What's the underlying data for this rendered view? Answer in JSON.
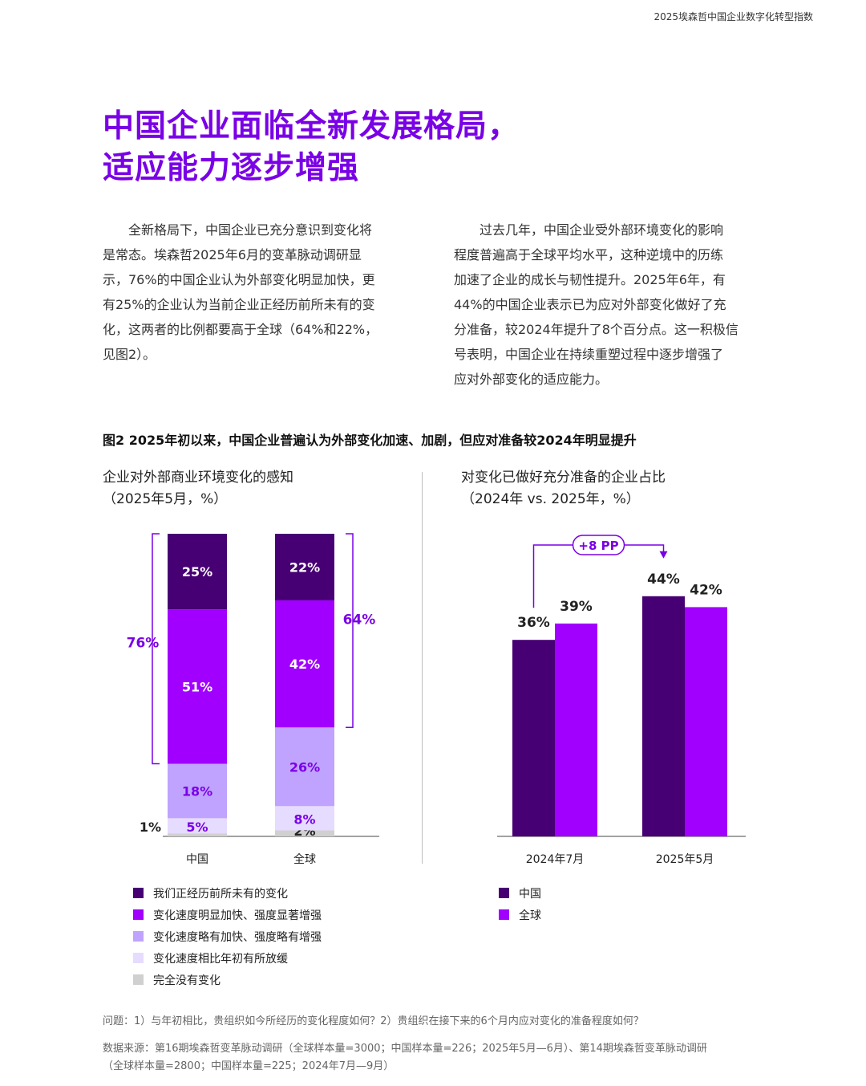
{
  "header": {
    "report_title": "2025埃森哲中国企业数字化转型指数"
  },
  "section": {
    "title_line1": "中国企业面临全新发展格局，",
    "title_line2": "适应能力逐步增强"
  },
  "body": {
    "left_lines": [
      "全新格局下，中国企业已充分意识到变化将",
      "是常态。埃森哲2025年6月的变革脉动调研显",
      "示，76%的中国企业认为外部变化明显加快，更",
      "有25%的企业认为当前企业正经历前所未有的变",
      "化，这两者的比例都要高于全球（64%和22%，",
      "见图2）。"
    ],
    "right_lines": [
      "过去几年，中国企业受外部环境变化的影响",
      "程度普遍高于全球平均水平，这种逆境中的历练",
      "加速了企业的成长与韧性提升。2025年6年，有",
      "44%的中国企业表示已为应对外部变化做好了充",
      "分准备，较2024年提升了8个百分点。这一积极信",
      "号表明，中国企业在持续重塑过程中逐步增强了",
      "应对外部变化的适应能力。"
    ]
  },
  "figure": {
    "title": "图2  2025年初以来，中国企业普遍认为外部变化加速、加剧，但应对准备较2024年明显提升"
  },
  "chart_data": [
    {
      "type": "bar",
      "stacked": true,
      "title": "企业对外部商业环境变化的感知",
      "subtitle": "（2025年5月，%）",
      "categories": [
        "中国",
        "全球"
      ],
      "series": [
        {
          "name": "完全没有变化",
          "values": [
            1,
            2
          ],
          "labels": [
            "1%",
            "2%"
          ],
          "color": "#d0d0d0"
        },
        {
          "name": "变化速度相比年初有所放缓",
          "values": [
            5,
            8
          ],
          "labels": [
            "5%",
            "8%"
          ],
          "color": "#e6dcff"
        },
        {
          "name": "变化速度略有加快、强度略有增强",
          "values": [
            18,
            26
          ],
          "labels": [
            "18%",
            "26%"
          ],
          "color": "#c0a3ff"
        },
        {
          "name": "变化速度明显加快、强度显著增强",
          "values": [
            51,
            42
          ],
          "labels": [
            "51%",
            "42%"
          ],
          "color": "#a100ff"
        },
        {
          "name": "我们正经历前所未有的变化",
          "values": [
            25,
            22
          ],
          "labels": [
            "25%",
            "22%"
          ],
          "color": "#460073"
        }
      ],
      "bracket_labels": [
        "76%",
        "64%"
      ],
      "legend_order": [
        4,
        3,
        2,
        1,
        0
      ],
      "legend_position": "bottom"
    },
    {
      "type": "bar",
      "title": "对变化已做好充分准备的企业占比",
      "subtitle": "（2024年 vs. 2025年，%）",
      "categories": [
        "2024年7月",
        "2025年5月"
      ],
      "series": [
        {
          "name": "中国",
          "values": [
            36,
            44
          ],
          "labels": [
            "36%",
            "44%"
          ],
          "color": "#460073"
        },
        {
          "name": "全球",
          "values": [
            39,
            42
          ],
          "labels": [
            "39%",
            "42%"
          ],
          "color": "#a100ff"
        }
      ],
      "annotation": "+8 PP",
      "legend_position": "bottom"
    }
  ],
  "footnotes": {
    "question": "问题：1）与年初相比，贵组织如今所经历的变化程度如何？2）贵组织在接下来的6个月内应对变化的准备程度如何？",
    "source_line1": "数据来源：第16期埃森哲变革脉动调研（全球样本量=3000；中国样本量=226；2025年5月—6月）、第14期埃森哲变革脉动调研",
    "source_line2": "（全球样本量=2800；中国样本量=225；2024年7月—9月）"
  }
}
